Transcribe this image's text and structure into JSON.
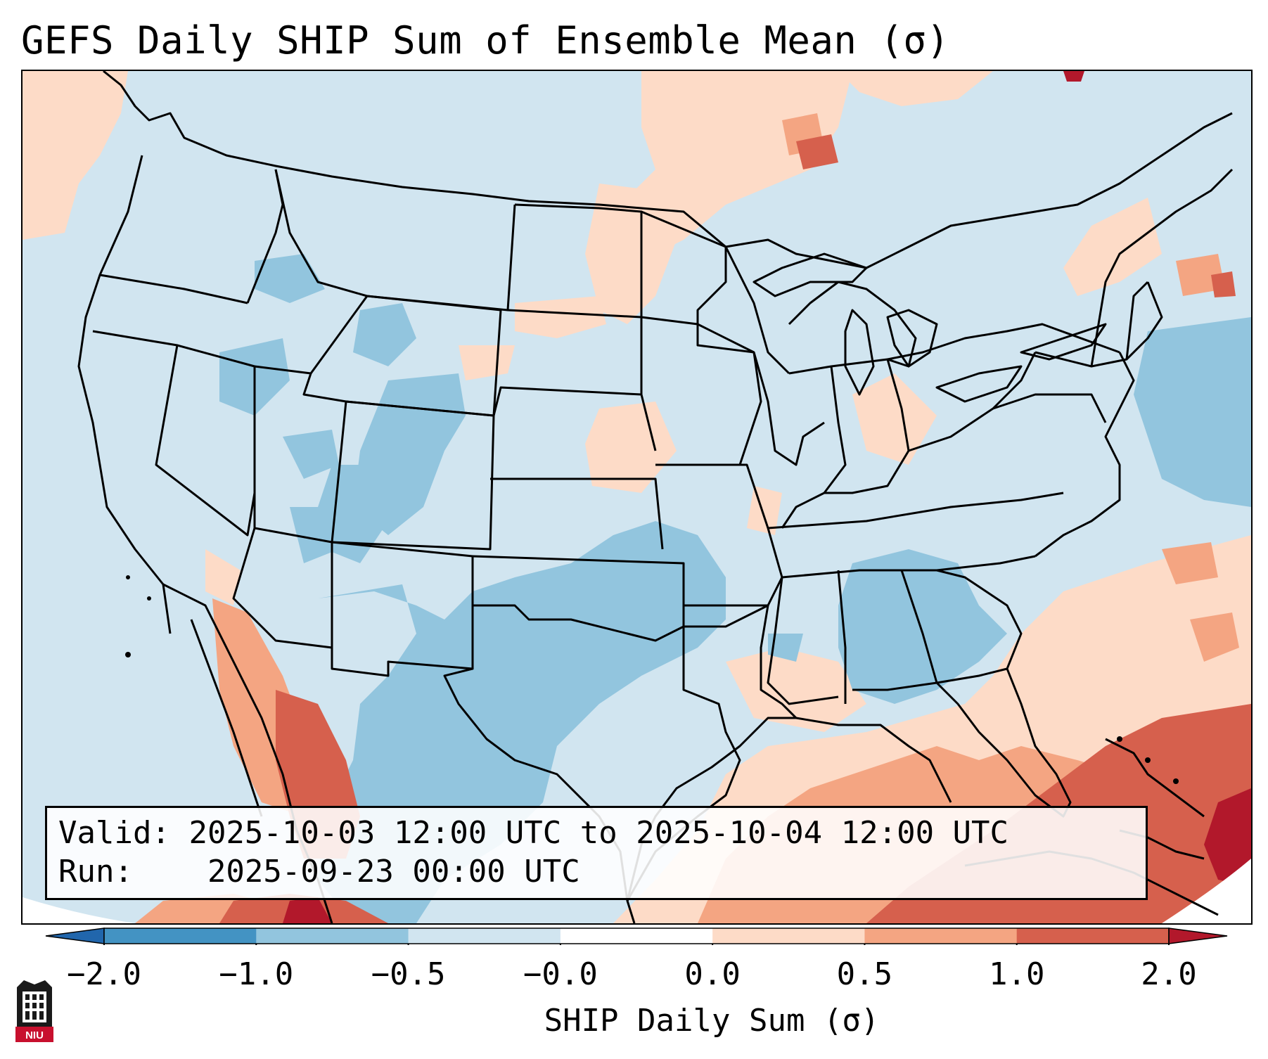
{
  "title": "GEFS Daily SHIP Sum of Ensemble Mean (σ)",
  "info": {
    "valid_label": "Valid:",
    "valid_value": "2025-10-03 12:00 UTC to 2025-10-04 12:00 UTC",
    "run_label": "Run:",
    "run_value": "2025-09-23 00:00 UTC"
  },
  "colorbar": {
    "label": "SHIP Daily Sum (σ)",
    "ticks": [
      "−2.0",
      "−1.0",
      "−0.5",
      "−0.0",
      "0.0",
      "0.5",
      "1.0",
      "2.0"
    ],
    "bins": [
      {
        "from": -2.0,
        "to": -1.0,
        "color": "#4393c3"
      },
      {
        "from": -1.0,
        "to": -0.5,
        "color": "#92c5de"
      },
      {
        "from": -0.5,
        "to": -0.0,
        "color": "#d1e5f0"
      },
      {
        "from": -0.0,
        "to": 0.0,
        "color": "#ffffff"
      },
      {
        "from": 0.0,
        "to": 0.5,
        "color": "#fddbc7"
      },
      {
        "from": 0.5,
        "to": 1.0,
        "color": "#f4a582"
      },
      {
        "from": 1.0,
        "to": 2.0,
        "color": "#d6604d"
      }
    ],
    "extend_low_color": "#2166ac",
    "extend_high_color": "#b2182b"
  },
  "logo": {
    "text": "NIU",
    "color": "#c8102e"
  }
}
